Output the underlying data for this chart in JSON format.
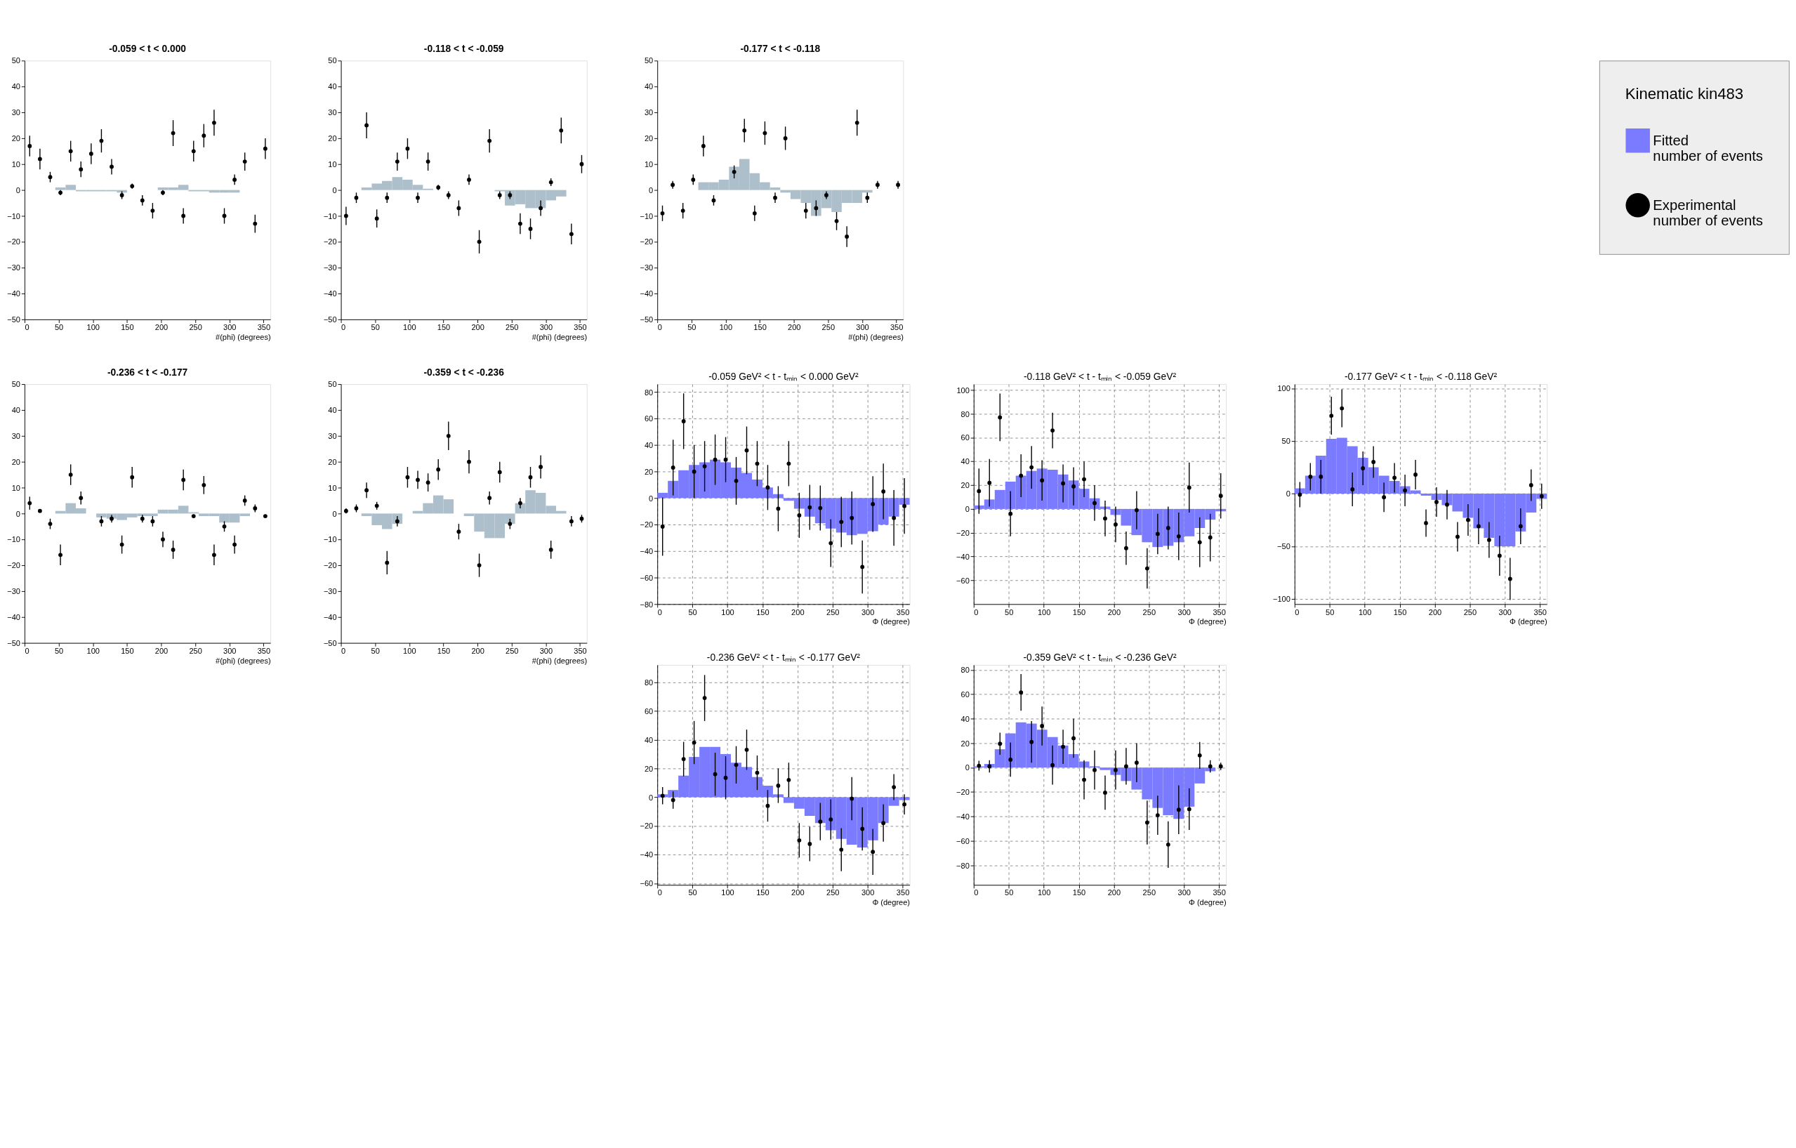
{
  "chart_data": [
    {
      "type": "histogram",
      "title": "-0.059 < t < 0.000",
      "xlabel": "#(phi) (degrees)",
      "color": "#aebfcc",
      "bins": [
        0,
        15,
        30,
        45,
        60,
        75,
        90,
        105,
        120,
        135,
        150,
        165,
        180,
        195,
        210,
        225,
        240,
        255,
        270,
        285,
        300,
        315,
        330,
        345,
        360
      ],
      "values": [
        0,
        0,
        0,
        1,
        2,
        -0.5,
        -0.5,
        -0.5,
        -0.5,
        -1,
        0,
        0,
        0,
        1,
        1,
        2,
        -0.5,
        -0.5,
        -1,
        -1,
        -1,
        0,
        0,
        0
      ],
      "series": [
        {
          "type": "scatter",
          "color": "#000000",
          "x": [
            7.5,
            22.5,
            37.5,
            52.5,
            67.5,
            82.5,
            97.5,
            112.5,
            127.5,
            142.5,
            157.5,
            172.5,
            187.5,
            202.5,
            217.5,
            232.5,
            247.5,
            262.5,
            277.5,
            292.5,
            307.5,
            322.5,
            337.5,
            352.5
          ],
          "values": [
            17,
            12,
            5,
            -1,
            15,
            8,
            14,
            19,
            9,
            -2,
            1.5,
            -4,
            -8,
            -1,
            22,
            -10,
            15,
            21,
            26,
            -10,
            4,
            11,
            -13,
            16
          ],
          "errors": [
            4,
            4,
            2,
            1,
            4,
            3,
            4,
            4.5,
            3,
            1.5,
            1,
            2,
            3,
            1,
            5,
            3,
            4,
            4.5,
            5,
            3,
            2,
            3.5,
            3.5,
            4
          ]
        }
      ],
      "xlim": [
        0,
        360
      ],
      "xticks": [
        0,
        50,
        100,
        150,
        200,
        250,
        300,
        350
      ],
      "ylim": [
        -50,
        50
      ],
      "yticks": [
        -50,
        -40,
        -30,
        -20,
        -10,
        0,
        10,
        20,
        30,
        40,
        50
      ],
      "marker": "circle"
    },
    {
      "type": "histogram",
      "title": "-0.118 < t < -0.059",
      "xlabel": "#(phi) (degrees)",
      "color": "#aebfcc",
      "bins": [
        0,
        15,
        30,
        45,
        60,
        75,
        90,
        105,
        120,
        135,
        150,
        165,
        180,
        195,
        210,
        225,
        240,
        255,
        270,
        285,
        300,
        315,
        330,
        345,
        360
      ],
      "values": [
        0,
        0,
        1,
        2.5,
        3.5,
        5,
        4,
        2,
        0.5,
        0,
        0,
        0,
        0,
        0,
        0,
        -0.5,
        -6,
        -5.5,
        -7,
        -7,
        -4,
        -2.5,
        0,
        0
      ],
      "series": [
        {
          "type": "scatter",
          "color": "#000000",
          "x": [
            7.5,
            22.5,
            37.5,
            52.5,
            67.5,
            82.5,
            97.5,
            112.5,
            127.5,
            142.5,
            157.5,
            172.5,
            187.5,
            202.5,
            217.5,
            232.5,
            247.5,
            262.5,
            277.5,
            292.5,
            307.5,
            322.5,
            337.5,
            352.5
          ],
          "values": [
            -10,
            -3,
            25,
            -11,
            -3,
            11,
            16,
            -3,
            11,
            1,
            -2,
            -7,
            4,
            -20,
            19,
            -2,
            -2,
            -13,
            -15,
            -7,
            3,
            23,
            -17,
            10
          ],
          "errors": [
            3.5,
            2,
            5,
            3.5,
            2,
            3.5,
            4,
            2,
            3.5,
            1,
            1.5,
            3,
            2,
            4.5,
            4.5,
            1.5,
            1.5,
            4,
            4,
            3,
            1.5,
            5,
            4,
            3.5
          ]
        }
      ],
      "xlim": [
        0,
        360
      ],
      "xticks": [
        0,
        50,
        100,
        150,
        200,
        250,
        300,
        350
      ],
      "ylim": [
        -50,
        50
      ],
      "yticks": [
        -50,
        -40,
        -30,
        -20,
        -10,
        0,
        10,
        20,
        30,
        40,
        50
      ],
      "marker": "circle"
    },
    {
      "type": "histogram",
      "title": "-0.177 < t < -0.118",
      "xlabel": "#(phi) (degrees)",
      "color": "#aebfcc",
      "bins": [
        0,
        15,
        30,
        45,
        60,
        75,
        90,
        105,
        120,
        135,
        150,
        165,
        180,
        195,
        210,
        225,
        240,
        255,
        270,
        285,
        300,
        315,
        330,
        345,
        360
      ],
      "values": [
        0,
        0,
        0,
        0,
        3,
        3,
        4,
        9,
        12,
        6.5,
        3,
        1,
        -1,
        -3.5,
        -5,
        -10,
        -7,
        -8.5,
        -5,
        -5,
        -1,
        0,
        0,
        0
      ],
      "series": [
        {
          "type": "scatter",
          "color": "#000000",
          "x": [
            7.5,
            22.5,
            37.5,
            52.5,
            67.5,
            82.5,
            97.5,
            112.5,
            127.5,
            142.5,
            157.5,
            172.5,
            187.5,
            202.5,
            217.5,
            232.5,
            247.5,
            262.5,
            277.5,
            292.5,
            307.5,
            322.5,
            337.5,
            352.5
          ],
          "values": [
            -9,
            2,
            -8,
            4,
            17,
            -4,
            null,
            7,
            23,
            -9,
            22,
            -3,
            20,
            null,
            -8,
            -7,
            -2,
            -12,
            -18,
            26,
            -3,
            2,
            null,
            2
          ],
          "errors": [
            3,
            1.5,
            3,
            2,
            4,
            2,
            null,
            2.5,
            4.5,
            3,
            4.5,
            2,
            4.5,
            null,
            3,
            3,
            1.5,
            3.5,
            4,
            5,
            2,
            1.5,
            null,
            1.5
          ]
        }
      ],
      "xlim": [
        0,
        360
      ],
      "xticks": [
        0,
        50,
        100,
        150,
        200,
        250,
        300,
        350
      ],
      "ylim": [
        -50,
        50
      ],
      "yticks": [
        -50,
        -40,
        -30,
        -20,
        -10,
        0,
        10,
        20,
        30,
        40,
        50
      ],
      "marker": "circle"
    },
    {
      "type": "histogram",
      "title": "-0.236 < t < -0.177",
      "xlabel": "#(phi) (degrees)",
      "color": "#aebfcc",
      "bins": [
        0,
        15,
        30,
        45,
        60,
        75,
        90,
        105,
        120,
        135,
        150,
        165,
        180,
        195,
        210,
        225,
        240,
        255,
        270,
        285,
        300,
        315,
        330,
        345,
        360
      ],
      "values": [
        0,
        0,
        0,
        1,
        4,
        2,
        0,
        -1.5,
        -2,
        -2.5,
        -1.5,
        -1,
        -1,
        1.5,
        1.5,
        3,
        0.5,
        -1,
        -1,
        -3.5,
        -3.5,
        -1,
        0,
        0
      ],
      "series": [
        {
          "type": "scatter",
          "color": "#000000",
          "x": [
            7.5,
            22.5,
            37.5,
            52.5,
            67.5,
            82.5,
            97.5,
            112.5,
            127.5,
            142.5,
            157.5,
            172.5,
            187.5,
            202.5,
            217.5,
            232.5,
            247.5,
            262.5,
            277.5,
            292.5,
            307.5,
            322.5,
            337.5,
            352.5
          ],
          "values": [
            4,
            1,
            -4,
            -16,
            15,
            6,
            null,
            -3,
            -2,
            -12,
            14,
            -2,
            -3,
            -10,
            -14,
            13,
            -1,
            11,
            -16,
            -5,
            -12,
            5,
            2,
            -1
          ],
          "errors": [
            2.5,
            0.5,
            2,
            4,
            4,
            2.5,
            null,
            2,
            1.5,
            3.5,
            4,
            1.5,
            2,
            3,
            3.5,
            4,
            0.5,
            3.5,
            4,
            2,
            3.5,
            2,
            1.5,
            0.5
          ]
        }
      ],
      "xlim": [
        0,
        360
      ],
      "xticks": [
        0,
        50,
        100,
        150,
        200,
        250,
        300,
        350
      ],
      "ylim": [
        -50,
        50
      ],
      "yticks": [
        -50,
        -40,
        -30,
        -20,
        -10,
        0,
        10,
        20,
        30,
        40,
        50
      ],
      "marker": "circle"
    },
    {
      "type": "histogram",
      "title": "-0.359 < t < -0.236",
      "xlabel": "#(phi) (degrees)",
      "color": "#aebfcc",
      "bins": [
        0,
        15,
        30,
        45,
        60,
        75,
        90,
        105,
        120,
        135,
        150,
        165,
        180,
        195,
        210,
        225,
        240,
        255,
        270,
        285,
        300,
        315,
        330,
        345,
        360
      ],
      "values": [
        0,
        0,
        -1,
        -4.5,
        -6,
        -4,
        0,
        1,
        4,
        7,
        5.5,
        0,
        -1,
        -7,
        -9.5,
        -9.5,
        -4,
        4,
        9,
        8,
        3,
        1,
        0,
        0
      ],
      "series": [
        {
          "type": "scatter",
          "color": "#000000",
          "x": [
            7.5,
            22.5,
            37.5,
            52.5,
            67.5,
            82.5,
            97.5,
            112.5,
            127.5,
            142.5,
            157.5,
            172.5,
            187.5,
            202.5,
            217.5,
            232.5,
            247.5,
            262.5,
            277.5,
            292.5,
            307.5,
            322.5,
            337.5,
            352.5
          ],
          "values": [
            1,
            2,
            9,
            3,
            -19,
            -3,
            14,
            13,
            12,
            17,
            30,
            -7,
            20,
            -20,
            6,
            16,
            -4,
            4,
            14,
            18,
            -14,
            null,
            -3,
            -2
          ],
          "errors": [
            1,
            1.5,
            3,
            1.5,
            4.5,
            2,
            4,
            3.5,
            3.5,
            4,
            5.5,
            3,
            4.5,
            4.5,
            2.5,
            4,
            2,
            2,
            4,
            4.5,
            3.5,
            null,
            2,
            1.5
          ]
        }
      ],
      "xlim": [
        0,
        360
      ],
      "xticks": [
        0,
        50,
        100,
        150,
        200,
        250,
        300,
        350
      ],
      "ylim": [
        -50,
        50
      ],
      "yticks": [
        -50,
        -40,
        -30,
        -20,
        -10,
        0,
        10,
        20,
        30,
        40,
        50
      ],
      "marker": "circle"
    },
    {
      "type": "histogram",
      "title": "-0.059 GeV² < t - tₘᵢₙ < 0.000 GeV²",
      "xlabel": "Φ (degree)",
      "color": "#7b7bff",
      "bins": [
        0,
        15,
        30,
        45,
        60,
        75,
        90,
        105,
        120,
        135,
        150,
        165,
        180,
        195,
        210,
        225,
        240,
        255,
        270,
        285,
        300,
        315,
        330,
        345,
        360
      ],
      "values": [
        4,
        13,
        21,
        25,
        27,
        29,
        27,
        23,
        19,
        14,
        8,
        3,
        -2,
        -8,
        -14,
        -19,
        -23,
        -26,
        -28,
        -27,
        -25,
        -20,
        -14,
        -5
      ],
      "series": [
        {
          "type": "scatter",
          "color": "#000000",
          "x": [
            7.5,
            22.5,
            37.5,
            52.5,
            67.5,
            82.5,
            97.5,
            112.5,
            127.5,
            142.5,
            157.5,
            172.5,
            187.5,
            202.5,
            217.5,
            232.5,
            247.5,
            262.5,
            277.5,
            292.5,
            307.5,
            322.5,
            337.5,
            352.5
          ],
          "values": [
            -21.5,
            23,
            58,
            20,
            24,
            29,
            29,
            13,
            36,
            26,
            8,
            -8,
            26,
            -13,
            -7,
            -7.5,
            -34,
            -18,
            -15,
            -52,
            -4.5,
            5,
            -15,
            -6
          ],
          "errors": [
            22,
            21,
            21,
            20,
            19,
            19,
            17,
            18,
            18,
            17,
            17,
            17,
            17,
            17,
            17,
            17,
            18,
            19,
            20,
            20,
            21,
            21,
            21,
            21
          ]
        }
      ],
      "xlim": [
        0,
        360
      ],
      "xticks": [
        0,
        50,
        100,
        150,
        200,
        250,
        300,
        350
      ],
      "ylim": [
        -80,
        86
      ],
      "yticks": [
        -80,
        -60,
        -40,
        -20,
        0,
        20,
        40,
        60,
        80
      ],
      "grid": true,
      "marker": "circle"
    },
    {
      "type": "histogram",
      "title": "-0.118 GeV² < t - tₘᵢₙ < -0.059 GeV²",
      "xlabel": "Φ (degree)",
      "color": "#7b7bff",
      "bins": [
        0,
        15,
        30,
        45,
        60,
        75,
        90,
        105,
        120,
        135,
        150,
        165,
        180,
        195,
        210,
        225,
        240,
        255,
        270,
        285,
        300,
        315,
        330,
        345,
        360
      ],
      "values": [
        3,
        8,
        16,
        23,
        28,
        32,
        34,
        33,
        29,
        24,
        17,
        9,
        2,
        -5,
        -14,
        -22,
        -28,
        -32,
        -31,
        -28,
        -23,
        -16,
        -9,
        -2
      ],
      "series": [
        {
          "type": "scatter",
          "color": "#000000",
          "x": [
            7.5,
            22.5,
            37.5,
            52.5,
            67.5,
            82.5,
            97.5,
            112.5,
            127.5,
            142.5,
            157.5,
            172.5,
            187.5,
            202.5,
            217.5,
            232.5,
            247.5,
            262.5,
            277.5,
            292.5,
            307.5,
            322.5,
            337.5,
            352.5
          ],
          "values": [
            15,
            22,
            77,
            -4,
            28,
            35,
            24,
            66,
            21.5,
            19,
            25,
            5,
            -8,
            -13,
            -33,
            -1,
            -50,
            -21,
            -16,
            -23,
            18,
            -28,
            -24,
            11
          ],
          "errors": [
            19,
            20,
            20,
            19,
            18,
            18,
            17,
            15,
            16,
            16,
            15,
            15,
            15,
            15,
            14,
            16,
            17,
            17,
            18,
            20,
            21,
            21,
            20,
            19
          ]
        }
      ],
      "xlim": [
        0,
        360
      ],
      "xticks": [
        0,
        50,
        100,
        150,
        200,
        250,
        300,
        350
      ],
      "ylim": [
        -80,
        105
      ],
      "yticks": [
        -60,
        -40,
        -20,
        0,
        20,
        40,
        60,
        80,
        100
      ],
      "grid": true,
      "marker": "circle"
    },
    {
      "type": "histogram",
      "title": "-0.177 GeV² < t - tₘᵢₙ < -0.118 GeV²",
      "xlabel": "Φ (degree)",
      "color": "#7b7bff",
      "bins": [
        0,
        15,
        30,
        45,
        60,
        75,
        90,
        105,
        120,
        135,
        150,
        165,
        180,
        195,
        210,
        225,
        240,
        255,
        270,
        285,
        300,
        315,
        330,
        345,
        360
      ],
      "values": [
        5,
        17,
        36,
        52,
        53,
        45,
        34,
        25,
        17,
        12,
        7,
        3,
        -2,
        -6,
        -11,
        -17,
        -23,
        -33,
        -42,
        -50,
        -50,
        -36,
        -18,
        -5
      ],
      "series": [
        {
          "type": "scatter",
          "color": "#000000",
          "x": [
            7.5,
            22.5,
            37.5,
            52.5,
            67.5,
            82.5,
            97.5,
            112.5,
            127.5,
            142.5,
            157.5,
            172.5,
            187.5,
            202.5,
            217.5,
            232.5,
            247.5,
            262.5,
            277.5,
            292.5,
            307.5,
            322.5,
            337.5,
            352.5
          ],
          "values": [
            -1,
            16,
            16,
            74,
            81,
            4,
            24,
            30,
            -3.5,
            15,
            3,
            18,
            -28,
            -8,
            -10.5,
            -41,
            -25,
            -31,
            -44,
            -59,
            -81,
            -31,
            8,
            -2.5
          ],
          "errors": [
            12,
            13,
            16,
            18,
            18,
            16,
            16,
            15,
            14,
            14,
            15,
            14,
            13,
            14,
            14,
            14,
            15,
            17,
            17,
            19,
            20,
            17,
            15,
            12
          ]
        }
      ],
      "xlim": [
        0,
        360
      ],
      "xticks": [
        0,
        50,
        100,
        150,
        200,
        250,
        300,
        350
      ],
      "ylim": [
        -105,
        104
      ],
      "yticks": [
        -100,
        -50,
        0,
        50,
        100
      ],
      "grid": true,
      "marker": "circle"
    },
    {
      "type": "histogram",
      "title": "-0.236 GeV² < t - tₘᵢₙ < -0.177 GeV²",
      "xlabel": "Φ (degree)",
      "color": "#7b7bff",
      "bins": [
        0,
        15,
        30,
        45,
        60,
        75,
        90,
        105,
        120,
        135,
        150,
        165,
        180,
        195,
        210,
        225,
        240,
        255,
        270,
        285,
        300,
        315,
        330,
        345,
        360
      ],
      "values": [
        2,
        5,
        15,
        28,
        35,
        35,
        30,
        24,
        21,
        14,
        8,
        2,
        -4,
        -8,
        -13,
        -18,
        -23,
        -29,
        -33,
        -35,
        -30,
        -18,
        -6,
        -2
      ],
      "series": [
        {
          "type": "scatter",
          "color": "#000000",
          "x": [
            7.5,
            22.5,
            37.5,
            52.5,
            67.5,
            82.5,
            97.5,
            112.5,
            127.5,
            142.5,
            157.5,
            172.5,
            187.5,
            202.5,
            217.5,
            232.5,
            247.5,
            262.5,
            277.5,
            292.5,
            307.5,
            322.5,
            337.5,
            352.5
          ],
          "values": [
            1,
            -2,
            26.5,
            38,
            69,
            16,
            13.5,
            22.5,
            33,
            17,
            -6,
            8,
            12,
            -30,
            -32.5,
            -17,
            -15.5,
            -36.5,
            -1,
            -22,
            -38,
            -18,
            7,
            -5
          ],
          "errors": [
            6,
            6,
            12,
            15,
            16,
            15,
            15,
            13,
            14,
            12,
            11,
            12,
            12,
            12,
            12,
            13,
            14,
            15,
            15,
            15,
            16,
            13,
            9,
            7
          ]
        }
      ],
      "xlim": [
        0,
        360
      ],
      "xticks": [
        0,
        50,
        100,
        150,
        200,
        250,
        300,
        350
      ],
      "ylim": [
        -61,
        92
      ],
      "yticks": [
        -60,
        -40,
        -20,
        0,
        20,
        40,
        60,
        80
      ],
      "grid": true,
      "marker": "circle"
    },
    {
      "type": "histogram",
      "title": "-0.359 GeV² < t - tₘᵢₙ < -0.236 GeV²",
      "xlabel": "Φ (degree)",
      "legend": "right",
      "legend_title": "Kinematic kin483",
      "series": [
        {
          "type": "histogram",
          "name": "Fitted\nnumber of events",
          "color": "#7b7bff",
          "bins": [
            0,
            15,
            30,
            45,
            60,
            75,
            90,
            105,
            120,
            135,
            150,
            165,
            180,
            195,
            210,
            225,
            240,
            255,
            270,
            285,
            300,
            315,
            330,
            345,
            360
          ],
          "values": [
            1,
            3,
            15,
            28,
            37,
            36,
            31,
            25,
            18,
            11,
            5,
            1,
            -2,
            -6,
            -11,
            -18,
            -26,
            -33,
            -39,
            -42,
            -32,
            -13,
            -3,
            0
          ]
        },
        {
          "type": "scatter",
          "name": "Experimental\nnumber of events",
          "color": "#000000",
          "x": [
            7.5,
            22.5,
            37.5,
            52.5,
            67.5,
            82.5,
            97.5,
            112.5,
            127.5,
            142.5,
            157.5,
            172.5,
            187.5,
            202.5,
            217.5,
            232.5,
            247.5,
            262.5,
            277.5,
            292.5,
            307.5,
            322.5,
            337.5,
            352.5
          ],
          "values": [
            1.5,
            1,
            19.5,
            6.5,
            61.5,
            21,
            34,
            2,
            17,
            24,
            -10,
            -2,
            -20.5,
            -2,
            1,
            4,
            -45,
            -39,
            -63,
            -34.5,
            -34,
            10,
            1,
            1
          ],
          "errors": [
            4,
            5,
            9,
            14,
            15,
            17,
            16,
            16,
            14,
            16,
            16,
            16,
            14,
            16,
            15,
            16,
            18,
            16,
            19,
            20,
            17,
            11,
            5,
            3
          ]
        }
      ],
      "xlim": [
        0,
        360
      ],
      "xticks": [
        0,
        50,
        100,
        150,
        200,
        250,
        300,
        350
      ],
      "ylim": [
        -96,
        84
      ],
      "yticks": [
        -80,
        -60,
        -40,
        -20,
        0,
        20,
        40,
        60,
        80
      ],
      "grid": true,
      "marker": "circle"
    }
  ]
}
